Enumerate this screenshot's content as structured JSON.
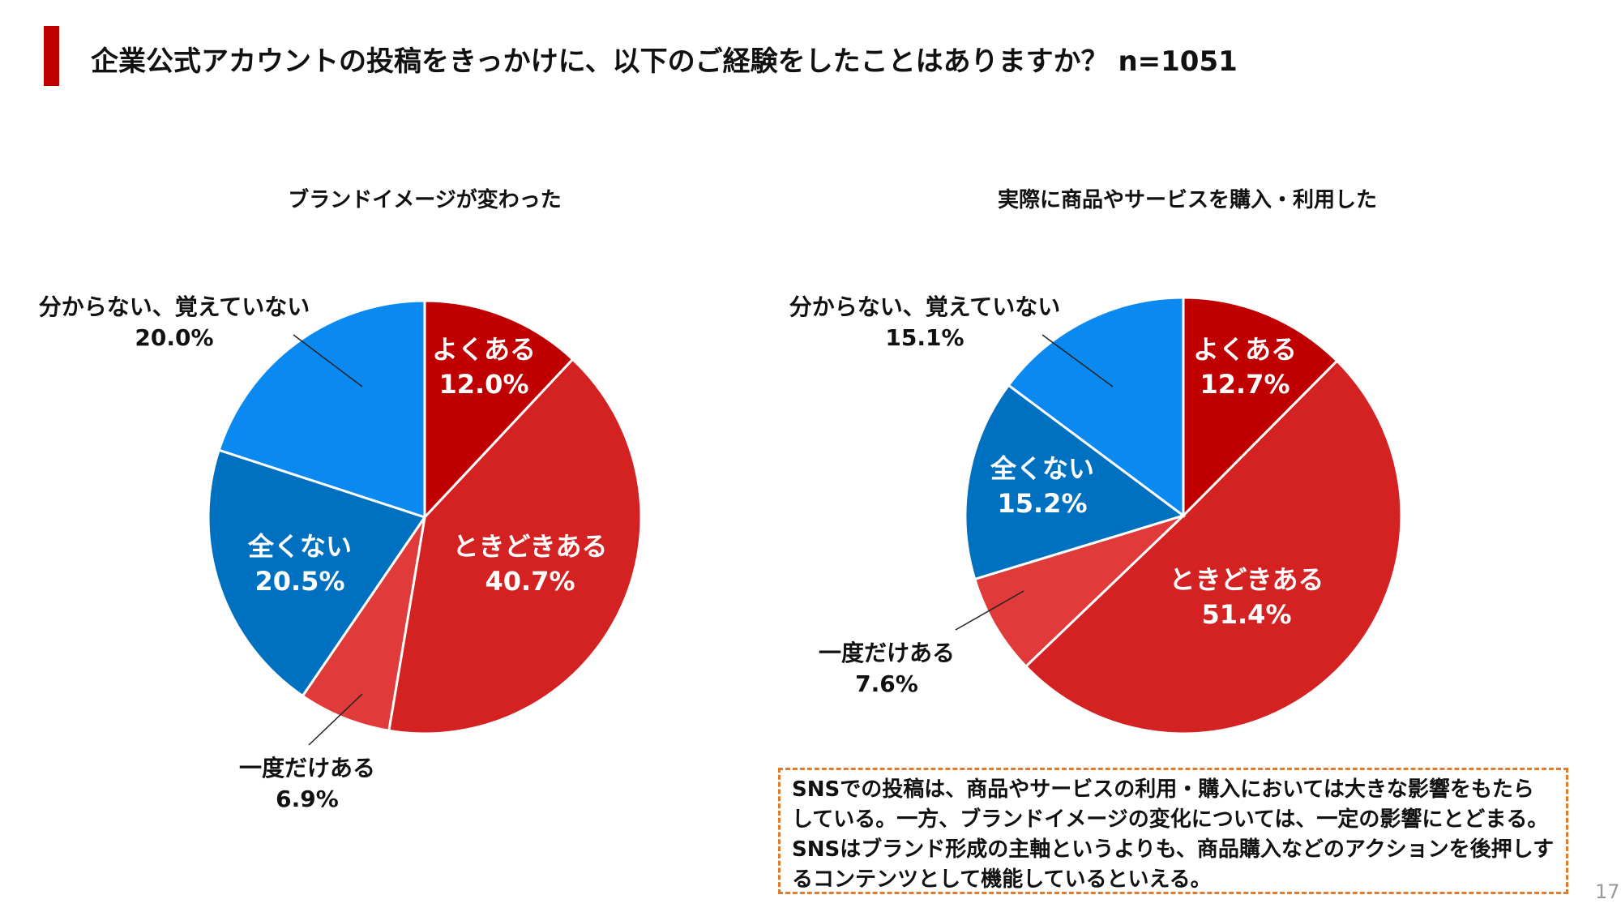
{
  "title": "企業公式アカウントの投稿をきっかけに、以下のご経験をしたことはありますか？ n=1051",
  "note": "SNSでの投稿は、商品やサービスの利用・購入においては大きな影響をもたらしている。一方、ブランドイメージの変化については、一定の影響にとどまる。SNSはブランド形成の主軸というよりも、商品購入などのアクションを後押しするコンテンツとして機能しているといえる。",
  "page_number": "17",
  "colors": {
    "often": "#C00000",
    "sometimes": "#D42121",
    "once": "#E03A3A",
    "never": "#0070C0",
    "unknown": "#0A8AF0"
  },
  "chart_data": [
    {
      "type": "pie",
      "title": "ブランドイメージが変わった",
      "categories": [
        "よくある",
        "ときどきある",
        "一度だけある",
        "全くない",
        "分からない、覚えていない"
      ],
      "values": [
        12.0,
        40.7,
        6.9,
        20.5,
        20.0
      ],
      "labels": [
        "12.0%",
        "40.7%",
        "6.9%",
        "20.5%",
        "20.0%"
      ]
    },
    {
      "type": "pie",
      "title": "実際に商品やサービスを購入・利用した",
      "categories": [
        "よくある",
        "ときどきある",
        "一度だけある",
        "全くない",
        "分からない、覚えていない"
      ],
      "values": [
        12.7,
        51.4,
        7.6,
        15.2,
        15.1
      ],
      "labels": [
        "12.7%",
        "51.4%",
        "7.6%",
        "15.2%",
        "15.1%"
      ]
    }
  ]
}
